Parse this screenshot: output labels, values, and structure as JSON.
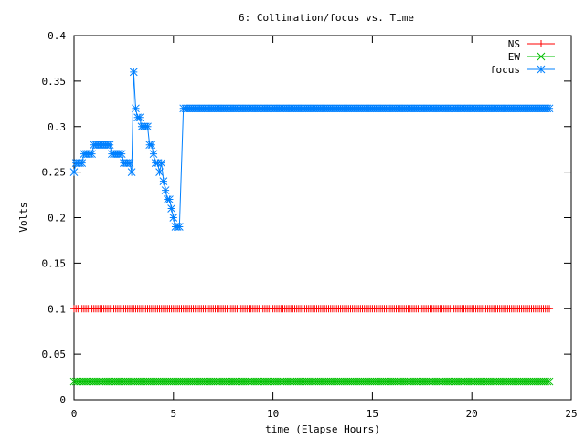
{
  "chart_data": {
    "type": "line",
    "title": "6: Collimation/focus vs. Time",
    "xlabel": "time (Elapse Hours)",
    "ylabel": "Volts",
    "xlim": [
      0,
      25
    ],
    "ylim": [
      0,
      0.4
    ],
    "xticks": [
      0,
      5,
      10,
      15,
      20,
      25
    ],
    "xtick_labels": [
      "0",
      "5",
      "10",
      "15",
      "20",
      "25"
    ],
    "yticks": [
      0,
      0.05,
      0.1,
      0.15,
      0.2,
      0.25,
      0.3,
      0.35,
      0.4
    ],
    "ytick_labels": [
      "0",
      "0.05",
      "0.1",
      "0.15",
      "0.2",
      "0.25",
      "0.3",
      "0.35",
      "0.4"
    ],
    "grid": false,
    "legend_position": "top-right",
    "series": [
      {
        "name": "NS",
        "color": "#ff0000",
        "marker": "plus",
        "constant": {
          "y": 0.1,
          "x_start": 0,
          "x_end": 23.9,
          "x_step": 0.1
        }
      },
      {
        "name": "EW",
        "color": "#00c000",
        "marker": "cross",
        "constant": {
          "y": 0.02,
          "x_start": 0,
          "x_end": 23.9,
          "x_step": 0.1
        }
      },
      {
        "name": "focus",
        "color": "#0080ff",
        "marker": "star",
        "points": [
          [
            0,
            0.25
          ],
          [
            0.1,
            0.26
          ],
          [
            0.2,
            0.26
          ],
          [
            0.3,
            0.26
          ],
          [
            0.4,
            0.26
          ],
          [
            0.5,
            0.27
          ],
          [
            0.6,
            0.27
          ],
          [
            0.7,
            0.27
          ],
          [
            0.8,
            0.27
          ],
          [
            0.9,
            0.27
          ],
          [
            1.0,
            0.28
          ],
          [
            1.1,
            0.28
          ],
          [
            1.2,
            0.28
          ],
          [
            1.3,
            0.28
          ],
          [
            1.4,
            0.28
          ],
          [
            1.5,
            0.28
          ],
          [
            1.6,
            0.28
          ],
          [
            1.7,
            0.28
          ],
          [
            1.8,
            0.28
          ],
          [
            1.9,
            0.27
          ],
          [
            2.0,
            0.27
          ],
          [
            2.1,
            0.27
          ],
          [
            2.2,
            0.27
          ],
          [
            2.3,
            0.27
          ],
          [
            2.4,
            0.27
          ],
          [
            2.5,
            0.26
          ],
          [
            2.6,
            0.26
          ],
          [
            2.7,
            0.26
          ],
          [
            2.8,
            0.26
          ],
          [
            2.9,
            0.25
          ],
          [
            3.0,
            0.36
          ],
          [
            3.1,
            0.32
          ],
          [
            3.2,
            0.31
          ],
          [
            3.3,
            0.31
          ],
          [
            3.4,
            0.3
          ],
          [
            3.5,
            0.3
          ],
          [
            3.6,
            0.3
          ],
          [
            3.7,
            0.3
          ],
          [
            3.8,
            0.28
          ],
          [
            3.9,
            0.28
          ],
          [
            4.0,
            0.27
          ],
          [
            4.1,
            0.26
          ],
          [
            4.2,
            0.26
          ],
          [
            4.3,
            0.25
          ],
          [
            4.4,
            0.26
          ],
          [
            4.5,
            0.24
          ],
          [
            4.6,
            0.23
          ],
          [
            4.7,
            0.22
          ],
          [
            4.8,
            0.22
          ],
          [
            4.9,
            0.21
          ],
          [
            5.0,
            0.2
          ],
          [
            5.1,
            0.19
          ],
          [
            5.2,
            0.19
          ],
          [
            5.3,
            0.19
          ],
          [
            5.5,
            0.32
          ]
        ],
        "constant_tail": {
          "y": 0.32,
          "x_start": 5.6,
          "x_end": 23.9,
          "x_step": 0.1
        }
      }
    ]
  }
}
